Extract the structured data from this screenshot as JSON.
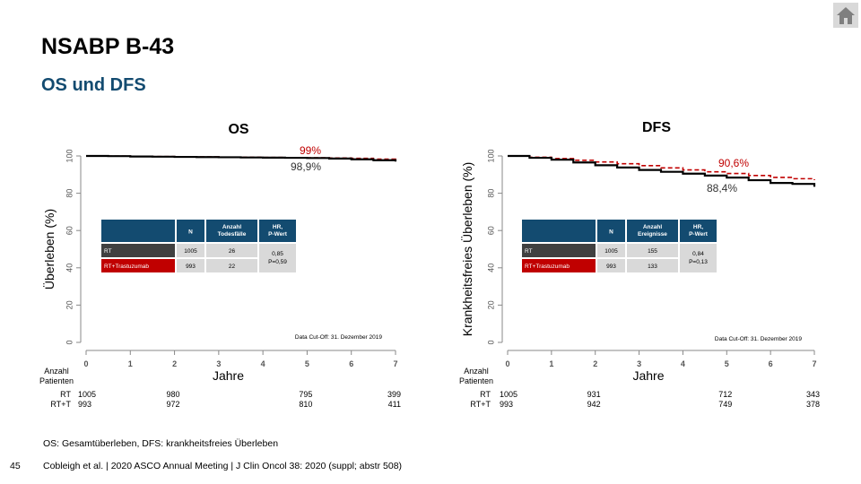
{
  "slide": {
    "title": "NSABP B-43",
    "subtitle": "OS und DFS",
    "footnote": "OS: Gesamtüberleben, DFS: krankheitsfreies Überleben",
    "page_number": "45",
    "citation": "Cobleigh et al. | 2020 ASCO Annual Meeting | J Clin Oncol 38: 2020 (suppl; abstr 508)",
    "home_icon": "home-icon"
  },
  "chart_data": [
    {
      "type": "line",
      "title": "OS",
      "xlabel": "Jahre",
      "ylabel": "Überleben (%)",
      "xlim": [
        0,
        7
      ],
      "ylim": [
        0,
        100
      ],
      "xticks": [
        0,
        1,
        2,
        3,
        4,
        5,
        6,
        7
      ],
      "yticks": [
        0,
        20,
        40,
        60,
        80,
        100
      ],
      "series": [
        {
          "name": "RT",
          "color": "#000000",
          "style": "solid",
          "x": [
            0,
            0.5,
            1,
            1.5,
            2,
            2.5,
            3,
            3.5,
            4,
            4.5,
            5,
            5.5,
            6,
            6.5,
            7
          ],
          "y": [
            100,
            99.9,
            99.7,
            99.6,
            99.5,
            99.4,
            99.3,
            99.2,
            99.1,
            99.0,
            98.9,
            98.6,
            98.2,
            97.7,
            97.0
          ]
        },
        {
          "name": "RT+Trastuzumab",
          "color": "#c00000",
          "style": "dashed",
          "x": [
            0,
            0.5,
            1,
            1.5,
            2,
            2.5,
            3,
            3.5,
            4,
            4.5,
            5,
            5.5,
            6,
            6.5,
            7
          ],
          "y": [
            100,
            99.9,
            99.8,
            99.7,
            99.6,
            99.5,
            99.4,
            99.3,
            99.2,
            99.1,
            99.0,
            98.9,
            98.7,
            98.3,
            97.9
          ]
        }
      ],
      "annotations": [
        {
          "text": "99%",
          "color": "#c00000"
        },
        {
          "text": "98,9%",
          "color": "#333333"
        }
      ],
      "table": {
        "headers": [
          "N",
          "Anzahl Todesfälle",
          "HR, P-Wert"
        ],
        "rows": [
          {
            "label": "RT",
            "n": "1005",
            "events": "26"
          },
          {
            "label": "RT+Trastuzumab",
            "n": "993",
            "events": "22"
          }
        ],
        "hr": "0,85",
        "p": "P=0,59"
      },
      "cutoff": "Data Cut-Off: 31. Dezember 2019",
      "risk": {
        "label_line1": "Anzahl",
        "label_line2": "Patienten",
        "rows": [
          {
            "name": "RT",
            "counts": [
              "1005",
              "980",
              "795",
              "399"
            ]
          },
          {
            "name": "RT+T",
            "counts": [
              "993",
              "972",
              "810",
              "411"
            ]
          }
        ],
        "times": [
          0,
          2,
          5,
          7
        ]
      }
    },
    {
      "type": "line",
      "title": "DFS",
      "xlabel": "Jahre",
      "ylabel": "Krankheitsfreies Überleben (%)",
      "xlim": [
        0,
        7
      ],
      "ylim": [
        0,
        100
      ],
      "xticks": [
        0,
        1,
        2,
        3,
        4,
        5,
        6,
        7
      ],
      "yticks": [
        0,
        20,
        40,
        60,
        80,
        100
      ],
      "series": [
        {
          "name": "RT",
          "color": "#000000",
          "style": "solid",
          "x": [
            0,
            0.5,
            1,
            1.5,
            2,
            2.5,
            3,
            3.5,
            4,
            4.5,
            5,
            5.5,
            6,
            6.5,
            7
          ],
          "y": [
            100,
            99.0,
            98.0,
            96.5,
            95.0,
            93.8,
            92.5,
            91.5,
            90.5,
            89.5,
            88.4,
            87.0,
            85.5,
            85.0,
            83.5
          ]
        },
        {
          "name": "RT+Trastuzumab",
          "color": "#c00000",
          "style": "dashed",
          "x": [
            0,
            0.5,
            1,
            1.5,
            2,
            2.5,
            3,
            3.5,
            4,
            4.5,
            5,
            5.5,
            6,
            6.5,
            7
          ],
          "y": [
            100,
            99.3,
            98.6,
            97.7,
            96.8,
            95.8,
            94.8,
            93.6,
            92.5,
            91.5,
            90.6,
            89.5,
            88.5,
            87.8,
            87.0
          ]
        }
      ],
      "annotations": [
        {
          "text": "90,6%",
          "color": "#c00000"
        },
        {
          "text": "88,4%",
          "color": "#333333"
        }
      ],
      "table": {
        "headers": [
          "N",
          "Anzahl Ereignisse",
          "HR, P-Wert"
        ],
        "rows": [
          {
            "label": "RT",
            "n": "1005",
            "events": "155"
          },
          {
            "label": "RT+Trastuzumab",
            "n": "993",
            "events": "133"
          }
        ],
        "hr": "0,84",
        "p": "P=0,13"
      },
      "cutoff": "Data Cut-Off: 31. Dezember 2019",
      "risk": {
        "label_line1": "Anzahl",
        "label_line2": "Patienten",
        "rows": [
          {
            "name": "RT",
            "counts": [
              "1005",
              "931",
              "712",
              "343"
            ]
          },
          {
            "name": "RT+T",
            "counts": [
              "993",
              "942",
              "749",
              "378"
            ]
          }
        ],
        "times": [
          0,
          2,
          5,
          7
        ]
      }
    }
  ]
}
